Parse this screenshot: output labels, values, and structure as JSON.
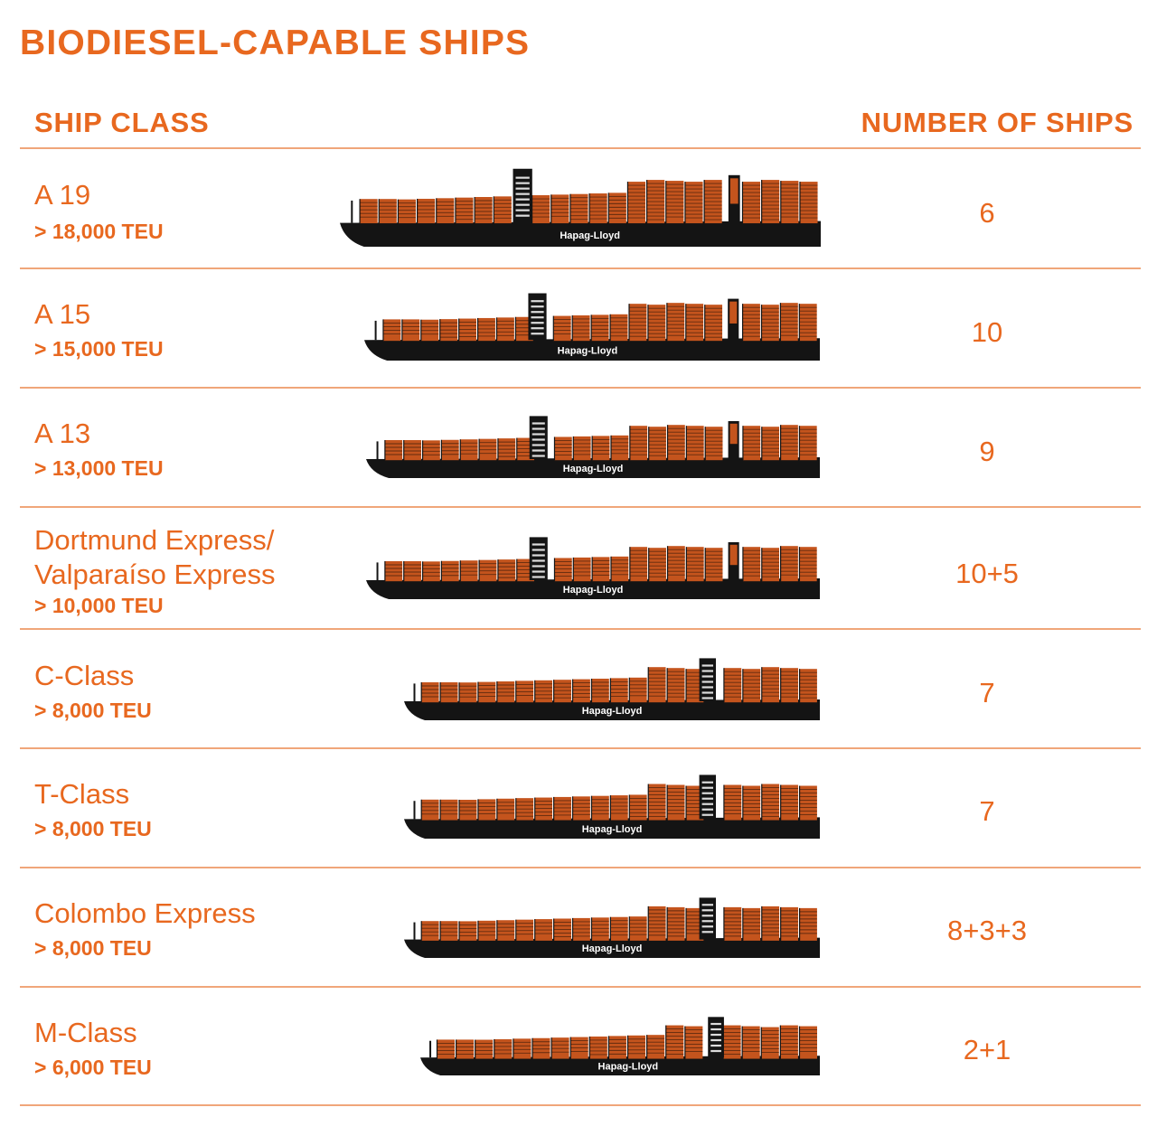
{
  "title": "BIODIESEL-CAPABLE SHIPS",
  "headers": {
    "ship_class": "SHIP CLASS",
    "number_of_ships": "NUMBER OF SHIPS"
  },
  "colors": {
    "accent": "#e8681f",
    "divider": "#f0a67a",
    "hull": "#141414",
    "container": "#c4541d"
  },
  "icons": {
    "ship": "container-ship-silhouette-icon"
  },
  "rows": [
    {
      "name": "A 19",
      "teu": "> 18,000 TEU",
      "count": "6",
      "brand": "Hapag-Lloyd"
    },
    {
      "name": "A 15",
      "teu": "> 15,000 TEU",
      "count": "10",
      "brand": "Hapag-Lloyd"
    },
    {
      "name": "A 13",
      "teu": "> 13,000 TEU",
      "count": "9",
      "brand": "Hapag-Lloyd"
    },
    {
      "name": "Dortmund Express/\nValparaíso Express",
      "teu": "> 10,000 TEU",
      "count": "10+5",
      "brand": "Hapag-Lloyd"
    },
    {
      "name": "C-Class",
      "teu": "> 8,000 TEU",
      "count": "7",
      "brand": "Hapag-Lloyd"
    },
    {
      "name": "T-Class",
      "teu": "> 8,000 TEU",
      "count": "7",
      "brand": "Hapag-Lloyd"
    },
    {
      "name": "Colombo Express",
      "teu": "> 8,000 TEU",
      "count": "8+3+3",
      "brand": "Hapag-Lloyd"
    },
    {
      "name": "M-Class",
      "teu": "> 6,000 TEU",
      "count": "2+1",
      "brand": "Hapag-Lloyd"
    }
  ]
}
